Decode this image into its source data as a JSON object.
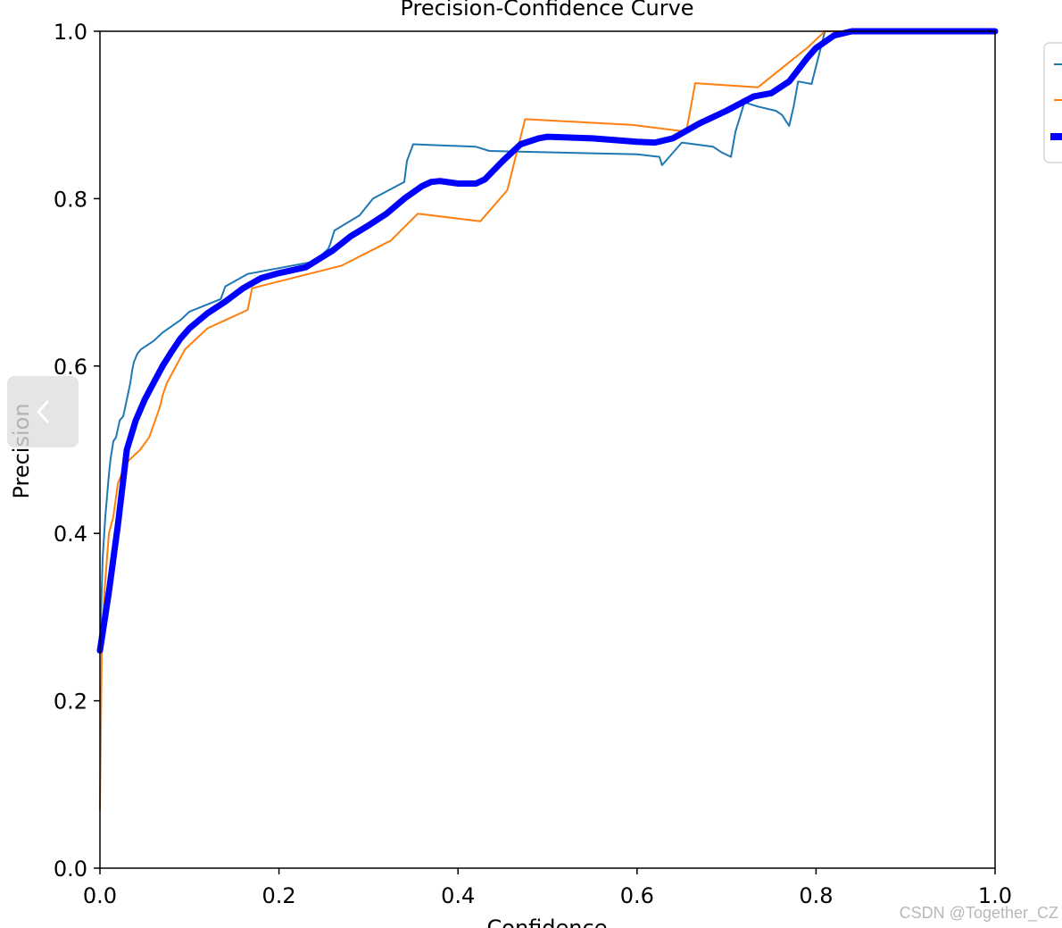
{
  "chart_data": {
    "type": "line",
    "title": "Precision-Confidence Curve",
    "xlabel": "Confidence",
    "ylabel": "Precision",
    "xlim": [
      0.0,
      1.0
    ],
    "ylim": [
      0.0,
      1.0
    ],
    "xticks": [
      "0.0",
      "0.2",
      "0.4",
      "0.6",
      "0.8",
      "1.0"
    ],
    "yticks": [
      "0.0",
      "0.2",
      "0.4",
      "0.6",
      "0.8",
      "1.0"
    ],
    "grid": false,
    "legend_position": "top-right (cut off)",
    "series": [
      {
        "color": "#1f77b4",
        "x": [
          0.0,
          0.003,
          0.006,
          0.01,
          0.012,
          0.015,
          0.018,
          0.022,
          0.026,
          0.03,
          0.032,
          0.034,
          0.036,
          0.038,
          0.04,
          0.042,
          0.046,
          0.06,
          0.07,
          0.09,
          0.1,
          0.135,
          0.14,
          0.165,
          0.2,
          0.24,
          0.255,
          0.257,
          0.262,
          0.29,
          0.305,
          0.34,
          0.343,
          0.35,
          0.42,
          0.435,
          0.6,
          0.625,
          0.628,
          0.65,
          0.685,
          0.695,
          0.705,
          0.71,
          0.72,
          0.735,
          0.755,
          0.762,
          0.768,
          0.77,
          0.775,
          0.78,
          0.795,
          0.81,
          0.82,
          1.0
        ],
        "y": [
          0.26,
          0.37,
          0.42,
          0.47,
          0.49,
          0.51,
          0.515,
          0.535,
          0.54,
          0.56,
          0.57,
          0.58,
          0.595,
          0.605,
          0.61,
          0.615,
          0.62,
          0.63,
          0.64,
          0.655,
          0.665,
          0.68,
          0.695,
          0.71,
          0.717,
          0.725,
          0.74,
          0.745,
          0.762,
          0.78,
          0.8,
          0.82,
          0.845,
          0.865,
          0.862,
          0.857,
          0.853,
          0.85,
          0.84,
          0.867,
          0.862,
          0.855,
          0.85,
          0.88,
          0.915,
          0.91,
          0.905,
          0.9,
          0.89,
          0.887,
          0.91,
          0.94,
          0.937,
          1.0,
          1.0,
          1.0
        ]
      },
      {
        "color": "#ff7f0e",
        "x": [
          0.0,
          0.002,
          0.005,
          0.01,
          0.015,
          0.02,
          0.03,
          0.045,
          0.055,
          0.06,
          0.065,
          0.068,
          0.07,
          0.075,
          0.095,
          0.12,
          0.165,
          0.17,
          0.27,
          0.325,
          0.355,
          0.425,
          0.455,
          0.475,
          0.595,
          0.655,
          0.665,
          0.735,
          0.79,
          0.81,
          0.82,
          1.0
        ],
        "y": [
          0.07,
          0.26,
          0.33,
          0.4,
          0.42,
          0.46,
          0.485,
          0.5,
          0.515,
          0.53,
          0.545,
          0.555,
          0.565,
          0.58,
          0.62,
          0.645,
          0.667,
          0.693,
          0.72,
          0.75,
          0.782,
          0.773,
          0.81,
          0.895,
          0.888,
          0.88,
          0.938,
          0.933,
          0.98,
          1.0,
          1.0,
          1.0
        ]
      },
      {
        "color": "#0000ff",
        "x": [
          0.0,
          0.01,
          0.02,
          0.03,
          0.04,
          0.05,
          0.06,
          0.07,
          0.08,
          0.09,
          0.1,
          0.12,
          0.14,
          0.16,
          0.18,
          0.2,
          0.23,
          0.26,
          0.28,
          0.3,
          0.32,
          0.34,
          0.36,
          0.37,
          0.38,
          0.4,
          0.42,
          0.43,
          0.45,
          0.47,
          0.49,
          0.5,
          0.55,
          0.6,
          0.62,
          0.64,
          0.67,
          0.7,
          0.73,
          0.75,
          0.77,
          0.79,
          0.8,
          0.82,
          0.84,
          1.0
        ],
        "y": [
          0.26,
          0.33,
          0.41,
          0.5,
          0.535,
          0.56,
          0.58,
          0.6,
          0.617,
          0.633,
          0.645,
          0.663,
          0.677,
          0.693,
          0.705,
          0.711,
          0.718,
          0.738,
          0.755,
          0.768,
          0.782,
          0.8,
          0.815,
          0.82,
          0.821,
          0.818,
          0.818,
          0.823,
          0.845,
          0.865,
          0.872,
          0.874,
          0.872,
          0.868,
          0.867,
          0.872,
          0.89,
          0.905,
          0.922,
          0.926,
          0.94,
          0.968,
          0.98,
          0.995,
          1.0,
          1.0
        ]
      }
    ]
  },
  "ui": {
    "collapse_icon": "chevron-left-icon"
  },
  "watermark": "CSDN @Together_CZ"
}
